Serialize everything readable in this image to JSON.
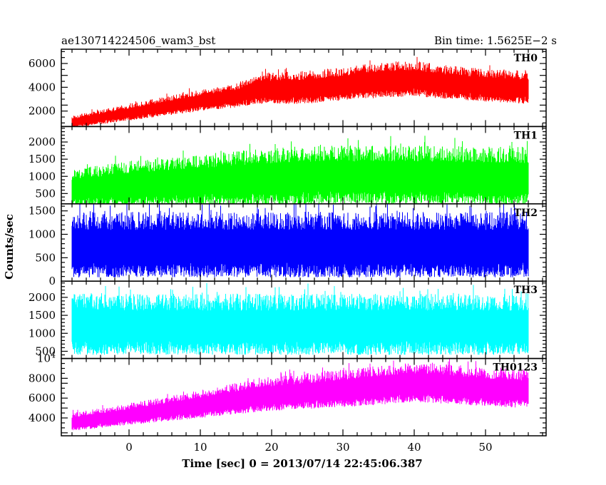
{
  "header": {
    "title": "ae130714224506_wam3_bst",
    "bin_time": "Bin time: 1.5625E−2 s"
  },
  "axes": {
    "xlabel": "Time [sec] 0 = 2013/07/14 22:45:06.387",
    "ylabel": "Counts/sec"
  },
  "chart_data": {
    "type": "line",
    "title": "ae130714224506_wam3_bst",
    "xlabel": "Time [sec] 0 = 2013/07/14 22:45:06.387",
    "ylabel": "Counts/sec",
    "xlim": [
      -9.5,
      58.5
    ],
    "x_ticks": [
      0,
      10,
      20,
      30,
      40,
      50
    ],
    "x_minor_step": 2,
    "data_x_range": [
      -8,
      56
    ],
    "bin_time_s": 0.015625,
    "panels": [
      {
        "name": "TH0",
        "color": "#ff0000",
        "ylim": [
          700,
          7200
        ],
        "y_ticks": [
          2000,
          4000,
          6000
        ],
        "y_tick_labels": [
          "2000",
          "4000",
          "6000"
        ],
        "y_minor_step": 500,
        "trend": {
          "x": [
            -8,
            0,
            10,
            15,
            18,
            25,
            30,
            35,
            40,
            45,
            50,
            56
          ],
          "mean": [
            1100,
            1900,
            2900,
            3300,
            3900,
            4000,
            4300,
            4600,
            4750,
            4400,
            4200,
            4000
          ],
          "spread": [
            500,
            700,
            900,
            1000,
            1300,
            1400,
            1400,
            1500,
            1500,
            1400,
            1400,
            1400
          ]
        }
      },
      {
        "name": "TH1",
        "color": "#00ff00",
        "ylim": [
          200,
          2450
        ],
        "y_ticks": [
          500,
          1000,
          1500,
          2000
        ],
        "y_tick_labels": [
          "500",
          "1000",
          "1500",
          "2000"
        ],
        "y_minor_step": 100,
        "trend": {
          "x": [
            -8,
            0,
            10,
            20,
            30,
            40,
            56
          ],
          "mean": [
            650,
            800,
            900,
            1000,
            1050,
            1050,
            1000
          ],
          "spread": [
            550,
            650,
            750,
            850,
            850,
            850,
            850
          ]
        }
      },
      {
        "name": "TH2",
        "color": "#0000ff",
        "ylim": [
          0,
          1650
        ],
        "y_ticks": [
          0,
          500,
          1000,
          1500
        ],
        "y_tick_labels": [
          "0",
          "500",
          "1000",
          "1500"
        ],
        "y_minor_step": 100,
        "trend": {
          "x": [
            -8,
            56
          ],
          "mean": [
            780,
            780
          ],
          "spread": [
            700,
            700
          ]
        }
      },
      {
        "name": "TH3",
        "color": "#00ffff",
        "ylim": [
          300,
          2450
        ],
        "y_ticks": [
          500,
          1000,
          1500,
          2000
        ],
        "y_tick_labels": [
          "500",
          "1000",
          "1500",
          "2000"
        ],
        "y_minor_step": 100,
        "trend": {
          "x": [
            -8,
            56
          ],
          "mean": [
            1250,
            1250
          ],
          "spread": [
            850,
            850
          ]
        }
      },
      {
        "name": "TH0123",
        "color": "#ff00ff",
        "ylim": [
          2200,
          10000
        ],
        "y_ticks": [
          4000,
          6000,
          8000
        ],
        "y_tick_labels": [
          "4000",
          "6000",
          "8000"
        ],
        "y_top_label": "10^4",
        "y_minor_step": 500,
        "trend": {
          "x": [
            -8,
            0,
            10,
            18,
            25,
            30,
            35,
            40,
            45,
            50,
            56
          ],
          "mean": [
            3600,
            4400,
            5400,
            6300,
            6700,
            7000,
            7300,
            7600,
            7400,
            7100,
            6900
          ],
          "spread": [
            900,
            1100,
            1400,
            1700,
            1800,
            1900,
            2000,
            2000,
            2000,
            1900,
            1900
          ]
        }
      }
    ]
  }
}
